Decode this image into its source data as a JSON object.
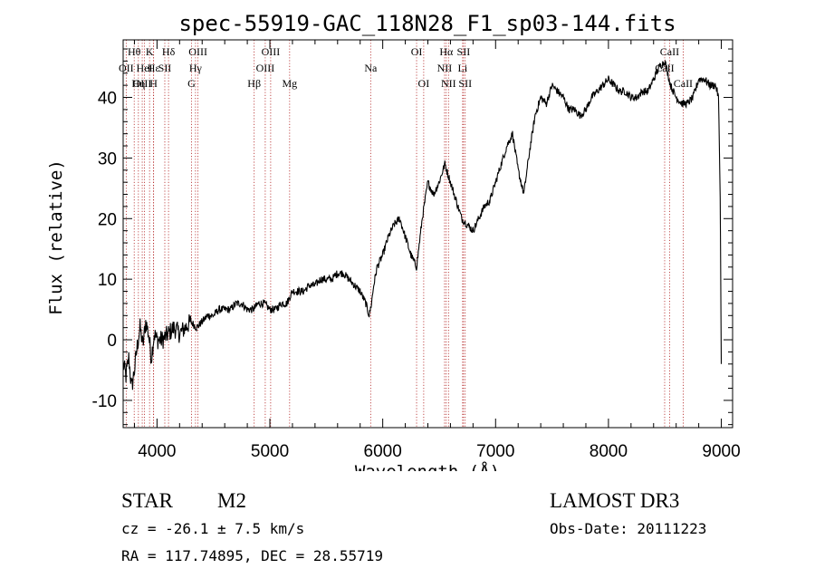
{
  "chart_data": {
    "type": "line",
    "title": "spec-55919-GAC_118N28_F1_sp03-144.fits",
    "xlabel": "Wavelength (Å)",
    "ylabel": "Flux (relative)",
    "xlim": [
      3700,
      9100
    ],
    "ylim": [
      -14.5,
      49.5
    ],
    "xticks": [
      4000,
      5000,
      6000,
      7000,
      8000,
      9000
    ],
    "yticks": [
      -10,
      0,
      10,
      20,
      30,
      40
    ],
    "series": [
      {
        "name": "flux",
        "x": [
          3700,
          3725,
          3750,
          3775,
          3800,
          3825,
          3850,
          3875,
          3900,
          3925,
          3950,
          3975,
          4000,
          4050,
          4100,
          4150,
          4200,
          4250,
          4300,
          4350,
          4400,
          4450,
          4500,
          4550,
          4600,
          4650,
          4700,
          4750,
          4800,
          4850,
          4900,
          4950,
          5000,
          5050,
          5100,
          5150,
          5200,
          5250,
          5300,
          5350,
          5400,
          5450,
          5500,
          5550,
          5600,
          5650,
          5700,
          5750,
          5800,
          5850,
          5880,
          5900,
          5920,
          5950,
          6000,
          6050,
          6100,
          6150,
          6200,
          6250,
          6300,
          6350,
          6400,
          6450,
          6500,
          6550,
          6600,
          6650,
          6700,
          6750,
          6800,
          6850,
          6900,
          6950,
          7000,
          7050,
          7100,
          7150,
          7200,
          7250,
          7300,
          7350,
          7400,
          7450,
          7500,
          7550,
          7600,
          7650,
          7700,
          7750,
          7800,
          7850,
          7900,
          7950,
          8000,
          8050,
          8100,
          8150,
          8200,
          8250,
          8300,
          8350,
          8400,
          8450,
          8500,
          8550,
          8600,
          8650,
          8700,
          8750,
          8800,
          8850,
          8900,
          8950,
          8975,
          8990,
          9000
        ],
        "values": [
          -4,
          -6,
          -3,
          -8,
          -5,
          -1,
          2,
          -1,
          3,
          1,
          -3,
          1,
          0,
          0,
          1,
          2,
          1,
          2,
          3,
          2,
          3,
          4,
          4,
          5,
          5,
          5,
          6,
          6,
          5,
          5,
          6,
          6,
          5,
          5,
          6,
          6,
          8,
          8,
          8,
          9,
          9,
          10,
          10,
          10,
          11,
          11,
          10,
          9,
          8,
          6,
          4,
          6,
          9,
          12,
          14,
          17,
          19,
          20,
          17,
          14,
          12,
          20,
          26,
          24,
          26,
          29,
          26,
          23,
          20,
          19,
          18,
          20,
          22,
          23,
          26,
          29,
          32,
          34,
          28,
          24,
          31,
          37,
          40,
          39,
          42,
          41,
          40,
          38,
          38,
          37,
          38,
          40,
          41,
          42,
          43,
          42,
          41,
          41,
          40,
          40,
          41,
          41,
          43,
          45,
          46,
          42,
          40,
          39,
          39,
          40,
          43,
          43,
          42,
          42,
          40,
          24,
          -4
        ]
      }
    ],
    "spectral_lines": [
      {
        "name": "Hθ",
        "x": 3798,
        "row": 0
      },
      {
        "name": "OII",
        "x": 3727,
        "row": 1
      },
      {
        "name": "OIII",
        "x": 3869,
        "row": 2
      },
      {
        "name": "HeI",
        "x": 3889,
        "row": 1
      },
      {
        "name": "K",
        "x": 3934,
        "row": 0
      },
      {
        "name": "Hε",
        "x": 3970,
        "row": 1
      },
      {
        "name": "H",
        "x": 3969,
        "row": 2
      },
      {
        "name": "SII",
        "x": 4069,
        "row": 1
      },
      {
        "name": "Hδ",
        "x": 4102,
        "row": 0
      },
      {
        "name": "Hη",
        "x": 3835,
        "row": 2
      },
      {
        "name": "G",
        "x": 4305,
        "row": 2
      },
      {
        "name": "Hγ",
        "x": 4341,
        "row": 1
      },
      {
        "name": "OIII",
        "x": 4363,
        "row": 0
      },
      {
        "name": "Hβ",
        "x": 4861,
        "row": 2
      },
      {
        "name": "OIII",
        "x": 4959,
        "row": 1
      },
      {
        "name": "OIII",
        "x": 5007,
        "row": 0
      },
      {
        "name": "Mg",
        "x": 5175,
        "row": 2
      },
      {
        "name": "Na",
        "x": 5893,
        "row": 1
      },
      {
        "name": "OI",
        "x": 6300,
        "row": 0
      },
      {
        "name": "OI",
        "x": 6363,
        "row": 2
      },
      {
        "name": "NII",
        "x": 6548,
        "row": 1
      },
      {
        "name": "Hα",
        "x": 6563,
        "row": 0
      },
      {
        "name": "NII",
        "x": 6583,
        "row": 2
      },
      {
        "name": "Li",
        "x": 6708,
        "row": 1
      },
      {
        "name": "SII",
        "x": 6716,
        "row": 0
      },
      {
        "name": "SII",
        "x": 6731,
        "row": 2
      },
      {
        "name": "CaII",
        "x": 8498,
        "row": 1
      },
      {
        "name": "CaII",
        "x": 8542,
        "row": 0
      },
      {
        "name": "CaII",
        "x": 8662,
        "row": 2
      }
    ]
  },
  "info": {
    "class": "STAR",
    "subclass": "M2",
    "survey": "LAMOST DR3",
    "cz": "cz = -26.1 ± 7.5 km/s",
    "obs_date": "Obs-Date: 20111223",
    "coords": "RA = 117.74895, DEC =  28.55719"
  },
  "colors": {
    "line_marker": "#b22222",
    "spectrum": "#000000"
  }
}
